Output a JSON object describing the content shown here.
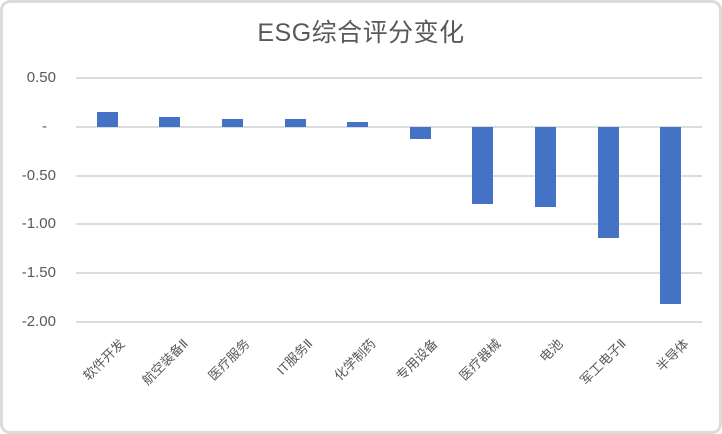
{
  "chart_data": {
    "type": "bar",
    "title": "ESG综合评分变化",
    "categories": [
      "软件开发",
      "航空装备Ⅱ",
      "医疗服务",
      "IT服务Ⅱ",
      "化学制药",
      "专用设备",
      "医疗器械",
      "电池",
      "军工电子Ⅱ",
      "半导体"
    ],
    "values": [
      0.15,
      0.1,
      0.08,
      0.08,
      0.05,
      -0.12,
      -0.79,
      -0.82,
      -1.14,
      -1.82
    ],
    "y_ticks": [
      {
        "label": "0.50",
        "value": 0.5
      },
      {
        "label": "-",
        "value": 0
      },
      {
        "label": "-0.50",
        "value": -0.5
      },
      {
        "label": "-1.00",
        "value": -1.0
      },
      {
        "label": "-1.50",
        "value": -1.5
      },
      {
        "label": "-2.00",
        "value": -2.0
      }
    ],
    "ylim": [
      -2.0,
      0.5
    ],
    "xlabel": "",
    "ylabel": "",
    "grid": true,
    "legend": false,
    "colors": {
      "bar": "#4472C4",
      "gridline": "#DCDCDC",
      "text": "#595959",
      "border": "#DCDCDC",
      "background": "#FFFFFF"
    }
  }
}
